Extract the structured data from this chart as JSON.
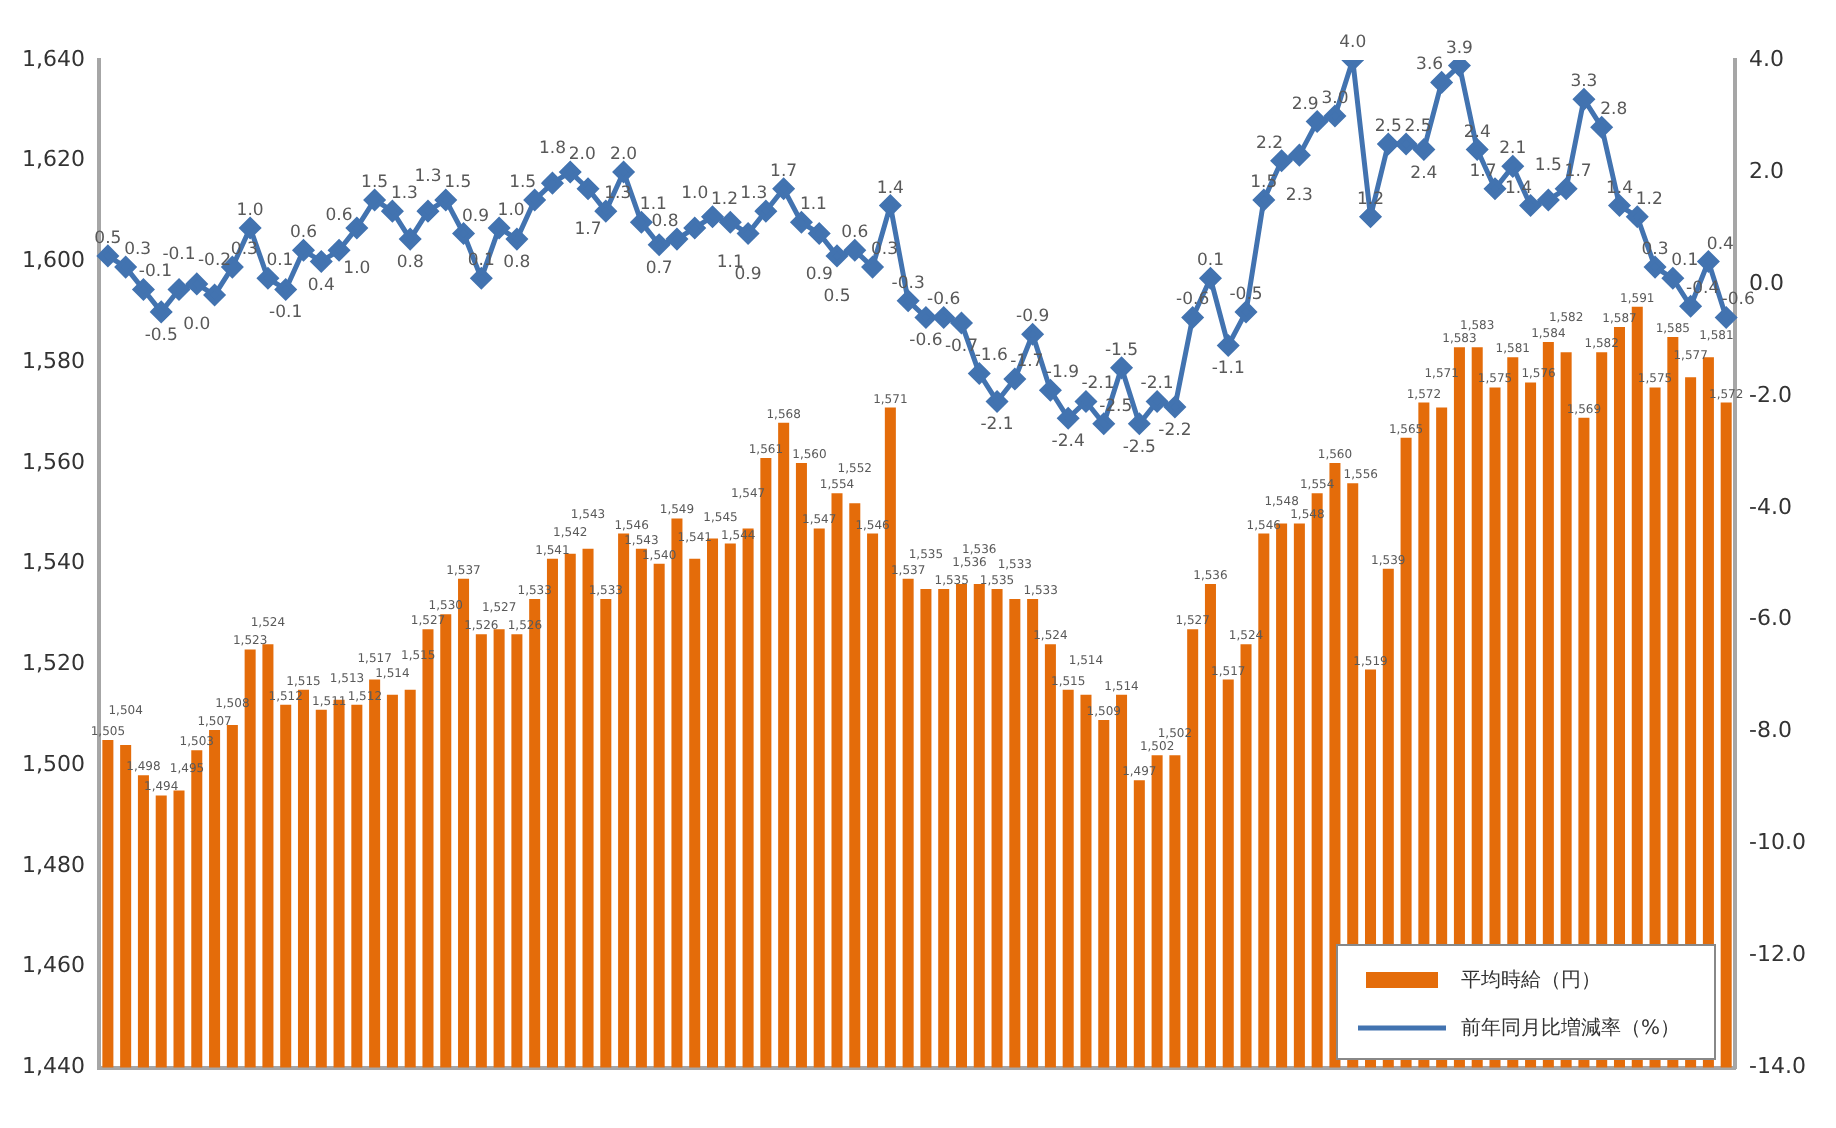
{
  "chart_data": {
    "type": "bar",
    "categories": [
      null,
      null,
      null,
      null,
      null,
      null,
      null,
      null,
      null,
      null,
      null,
      null,
      null,
      null,
      null,
      null,
      null,
      null,
      null,
      null,
      null,
      null,
      null,
      null,
      null,
      null,
      null,
      null,
      null,
      null,
      null,
      null,
      null,
      null,
      null,
      null,
      null,
      null,
      null,
      null,
      null,
      null,
      null,
      null,
      null,
      null,
      null,
      null,
      null,
      null,
      null,
      null,
      null,
      null,
      null,
      null,
      null,
      null,
      null,
      null,
      null,
      null,
      null,
      null,
      null,
      null,
      null,
      null,
      null,
      null,
      null,
      null,
      null,
      null,
      null,
      null,
      null,
      null,
      null,
      null,
      null,
      null,
      null,
      null,
      null,
      null,
      null,
      null,
      null,
      null,
      null,
      null
    ],
    "series": [
      {
        "name": "平均時給（円）",
        "color": "#e46c0a",
        "values": [
          1505,
          1504,
          1498,
          1494,
          1495,
          1503,
          1507,
          1508,
          1523,
          1524,
          1512,
          1515,
          1511,
          1513,
          1512,
          1517,
          1514,
          1515,
          1527,
          1530,
          1537,
          1526,
          1527,
          1526,
          1533,
          1541,
          1542,
          1543,
          1533,
          1546,
          1543,
          1540,
          1549,
          1541,
          1545,
          1544,
          1547,
          1561,
          1568,
          1560,
          1547,
          1554,
          1552,
          1546,
          1571,
          1537,
          1535,
          1535,
          1536,
          1536,
          1535,
          1533,
          1533,
          1524,
          1515,
          1514,
          1509,
          1514,
          1497,
          1502,
          1502,
          1527,
          1536,
          1517,
          1524,
          1546,
          1548,
          1548,
          1554,
          1560,
          1556,
          1519,
          1539,
          1565,
          1572,
          1571,
          1583,
          1583,
          1575,
          1581,
          1576,
          1584,
          1582,
          1569,
          1582,
          1587,
          1591,
          1575,
          1585,
          1577,
          1581,
          1572
        ],
        "value_labels": [
          "1,505",
          "1,504",
          "1,498",
          "1,494",
          "1,495",
          "1,503",
          "1,507",
          "1,508",
          "1,523",
          "1,524",
          "1,512",
          "1,515",
          "1,511",
          "1,513",
          "1,512",
          "1,517",
          "1,514",
          "1,515",
          "1,527",
          "1,530",
          "1,537",
          "1,526",
          "1,527",
          "1,526",
          "1,533",
          "1,541",
          "1,542",
          "1,543",
          "1,533",
          "1,546",
          "1,543",
          "1,540",
          "1,549",
          "1,541",
          "1,545",
          "1,544",
          "1,547",
          "1,561",
          "1,568",
          "1,560",
          "1,547",
          "1,554",
          "1,552",
          "1,546",
          "1,571",
          "1,537",
          "1,535",
          "1,535",
          "1,536",
          "1,536",
          "1,535",
          "1,533",
          "1,533",
          "1,524",
          "1,515",
          "1,514",
          "1,509",
          "1,514",
          "1,497",
          "1,502",
          "1,502",
          "1,527",
          "1,536",
          "1,517",
          "1,524",
          "1,546",
          "1,548",
          "1,548",
          "1,554",
          "1,560",
          "1,556",
          "1,519",
          "1,539",
          "1,565",
          "1,572",
          "1,571",
          "1,583",
          "1,583",
          "1,575",
          "1,581",
          "1,576",
          "1,584",
          "1,582",
          "1,569",
          "1,582",
          "1,587",
          "1,591",
          "1,575",
          "1,585",
          "1,577",
          "1,581",
          "1,572"
        ]
      },
      {
        "name": "前年同月比増減率（%）",
        "type": "line",
        "axis": "y2",
        "color": "#4273b0",
        "values": [
          0.5,
          0.3,
          -0.1,
          -0.5,
          -0.1,
          0.0,
          -0.2,
          0.3,
          1.0,
          0.1,
          -0.1,
          0.6,
          0.4,
          0.6,
          1.0,
          1.5,
          1.3,
          0.8,
          1.3,
          1.5,
          0.9,
          0.1,
          1.0,
          0.8,
          1.5,
          1.8,
          2.0,
          1.7,
          1.3,
          2.0,
          1.1,
          0.7,
          0.8,
          1.0,
          1.2,
          1.1,
          0.9,
          1.3,
          1.7,
          1.1,
          0.9,
          0.5,
          0.6,
          0.3,
          1.4,
          -0.3,
          -0.6,
          -0.6,
          -0.7,
          -1.6,
          -2.1,
          -1.7,
          -0.9,
          -1.9,
          -2.4,
          -2.1,
          -2.5,
          -1.5,
          -2.5,
          -2.1,
          -2.2,
          -0.6,
          0.1,
          -1.1,
          -0.5,
          1.5,
          2.2,
          2.3,
          2.9,
          3.0,
          4.0,
          1.2,
          2.5,
          2.5,
          2.4,
          3.6,
          3.9,
          2.4,
          1.7,
          2.1,
          1.4,
          1.5,
          1.7,
          3.3,
          2.8,
          1.4,
          1.2,
          0.3,
          0.1,
          -0.4,
          0.4,
          -0.6
        ],
        "value_labels": [
          "0.5",
          "0.3",
          "-0.1",
          "-0.5",
          "-0.1",
          "0.0",
          "-0.2",
          "0.3",
          "1.0",
          "0.1",
          "-0.1",
          "0.6",
          "0.4",
          "0.6",
          "1.0",
          "1.5",
          "1.3",
          "0.8",
          "1.3",
          "1.5",
          "0.9",
          "0.1",
          "1.0",
          "0.8",
          "1.5",
          "1.8",
          "2.0",
          "1.7",
          "1.3",
          "2.0",
          "1.1",
          "0.7",
          "0.8",
          "1.0",
          "1.2",
          "1.1",
          "0.9",
          "1.3",
          "1.7",
          "1.1",
          "0.9",
          "0.5",
          "0.6",
          "0.3",
          "1.4",
          "-0.3",
          "-0.6",
          "-0.6",
          "-0.7",
          "-1.6",
          "-2.1",
          "-1.7",
          "-0.9",
          "-1.9",
          "-2.4",
          "-2.1",
          "-2.5",
          "-1.5",
          "-2.5",
          "-2.1",
          "-2.2",
          "-0.6",
          "0.1",
          "-1.1",
          "-0.5",
          "1.5",
          "2.2",
          "2.3",
          "2.9",
          "3.0",
          "4.0",
          "1.2",
          "2.5",
          "2.5",
          "2.4",
          "3.6",
          "3.9",
          "2.4",
          "1.7",
          "2.1",
          "1.4",
          "1.5",
          "1.7",
          "3.3",
          "2.8",
          "1.4",
          "1.2",
          "0.3",
          "0.1",
          "-0.4",
          "0.4",
          "-0.6"
        ]
      }
    ],
    "ylim": [
      1440,
      1640
    ],
    "yticks": [
      {
        "value": 1440,
        "label": "1,440"
      },
      {
        "value": 1460,
        "label": "1,460"
      },
      {
        "value": 1480,
        "label": "1,480"
      },
      {
        "value": 1500,
        "label": "1,500"
      },
      {
        "value": 1520,
        "label": "1,520"
      },
      {
        "value": 1540,
        "label": "1,540"
      },
      {
        "value": 1560,
        "label": "1,560"
      },
      {
        "value": 1580,
        "label": "1,580"
      },
      {
        "value": 1600,
        "label": "1,600"
      },
      {
        "value": 1620,
        "label": "1,620"
      },
      {
        "value": 1640,
        "label": "1,640"
      }
    ],
    "y2lim": [
      -14,
      4
    ],
    "y2ticks": [
      {
        "value": -14,
        "label": "-14.0"
      },
      {
        "value": -12,
        "label": "-12.0"
      },
      {
        "value": -10,
        "label": "-10.0"
      },
      {
        "value": -8,
        "label": "-8.0"
      },
      {
        "value": -6,
        "label": "-6.0"
      },
      {
        "value": -4,
        "label": "-4.0"
      },
      {
        "value": -2,
        "label": "-2.0"
      },
      {
        "value": 0,
        "label": "0.0"
      },
      {
        "value": 2,
        "label": "2.0"
      },
      {
        "value": 4,
        "label": "4.0"
      }
    ],
    "marker": "diamond",
    "line_style": "solid",
    "grid": false,
    "legend": "bottom right"
  }
}
